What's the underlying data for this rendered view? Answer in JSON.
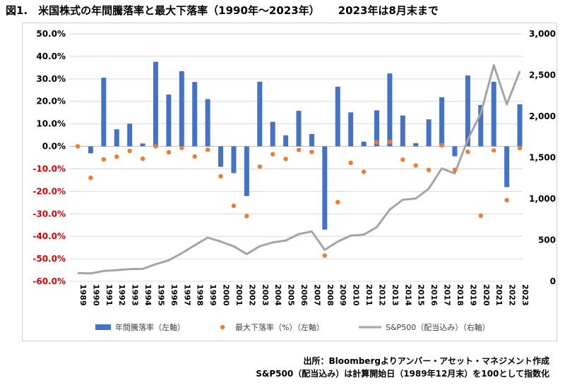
{
  "title": {
    "main": "図1.　米国株式の年間騰落率と最大下落率（1990年〜2023年）",
    "note": "2023年は8月末まで"
  },
  "source": {
    "line1": "出所：Bloombergよりアンバー・アセット・マネジメント作成",
    "line2": "S&P500（配当込み）は計算開始日（1989年12月末）を100として指数化"
  },
  "colors": {
    "bar": "#4472C4",
    "dot": "#ED7D31",
    "line": "#A5A5A5",
    "negative_tick": "#E00000",
    "grid": "#D9D9D9"
  },
  "chart_data": {
    "type": "bar",
    "categories": [
      "1989",
      "1990",
      "1991",
      "1992",
      "1993",
      "1994",
      "1995",
      "1996",
      "1997",
      "1998",
      "1999",
      "2000",
      "2001",
      "2002",
      "2003",
      "2004",
      "2005",
      "2006",
      "2007",
      "2008",
      "2009",
      "2010",
      "2011",
      "2012",
      "2013",
      "2014",
      "2015",
      "2016",
      "2017",
      "2018",
      "2019",
      "2020",
      "2021",
      "2022",
      "2023"
    ],
    "left_axis": {
      "ylim": [
        -60,
        50
      ],
      "ticks": [
        "50.0%",
        "40.0%",
        "30.0%",
        "20.0%",
        "10.0%",
        "0.0%",
        "-10.0%",
        "-20.0%",
        "-30.0%",
        "-40.0%",
        "-50.0%",
        "-60.0%"
      ]
    },
    "right_axis": {
      "ylim": [
        0,
        3000
      ],
      "ticks": [
        "3,000",
        "2,500",
        "2,000",
        "1,500",
        "1,000",
        "500",
        "0"
      ]
    },
    "legend_position": "bottom",
    "series": [
      {
        "name": "年間騰落率（左軸）",
        "kind": "bar",
        "axis": "left",
        "values": [
          null,
          -3.1,
          30.5,
          7.6,
          10.1,
          1.3,
          37.6,
          23.0,
          33.4,
          28.6,
          21.0,
          -9.1,
          -11.9,
          -22.1,
          28.7,
          10.9,
          4.9,
          15.8,
          5.5,
          -37.0,
          26.5,
          15.1,
          2.1,
          16.0,
          32.4,
          13.7,
          1.4,
          12.0,
          21.8,
          -4.4,
          31.5,
          18.4,
          28.7,
          -18.1,
          18.7
        ]
      },
      {
        "name": "最大下落率（%）（左軸）",
        "kind": "dot",
        "axis": "left",
        "values": [
          0,
          -14.0,
          -5.8,
          -4.6,
          -2.0,
          -5.5,
          0,
          -2.6,
          -0.7,
          -4.5,
          -1.5,
          -13.3,
          -26.4,
          -31.0,
          -9.0,
          -3.5,
          -5.6,
          -1.6,
          -2.5,
          -48.5,
          -24.8,
          -7.3,
          -11.3,
          1.8,
          2.0,
          -5.9,
          -8.5,
          -10.5,
          0.5,
          -10.5,
          -2.4,
          -30.8,
          -1.8,
          -23.9,
          -0.8
        ]
      },
      {
        "name": "S&P500（配当込み）（右軸）",
        "kind": "line",
        "axis": "right",
        "values": [
          100,
          96,
          126,
          136,
          149,
          151,
          208,
          255,
          341,
          438,
          530,
          482,
          425,
          331,
          426,
          472,
          495,
          573,
          605,
          381,
          482,
          555,
          566,
          657,
          870,
          989,
          1003,
          1123,
          1368,
          1308,
          1720,
          2036,
          2620,
          2146,
          2547
        ]
      }
    ]
  }
}
